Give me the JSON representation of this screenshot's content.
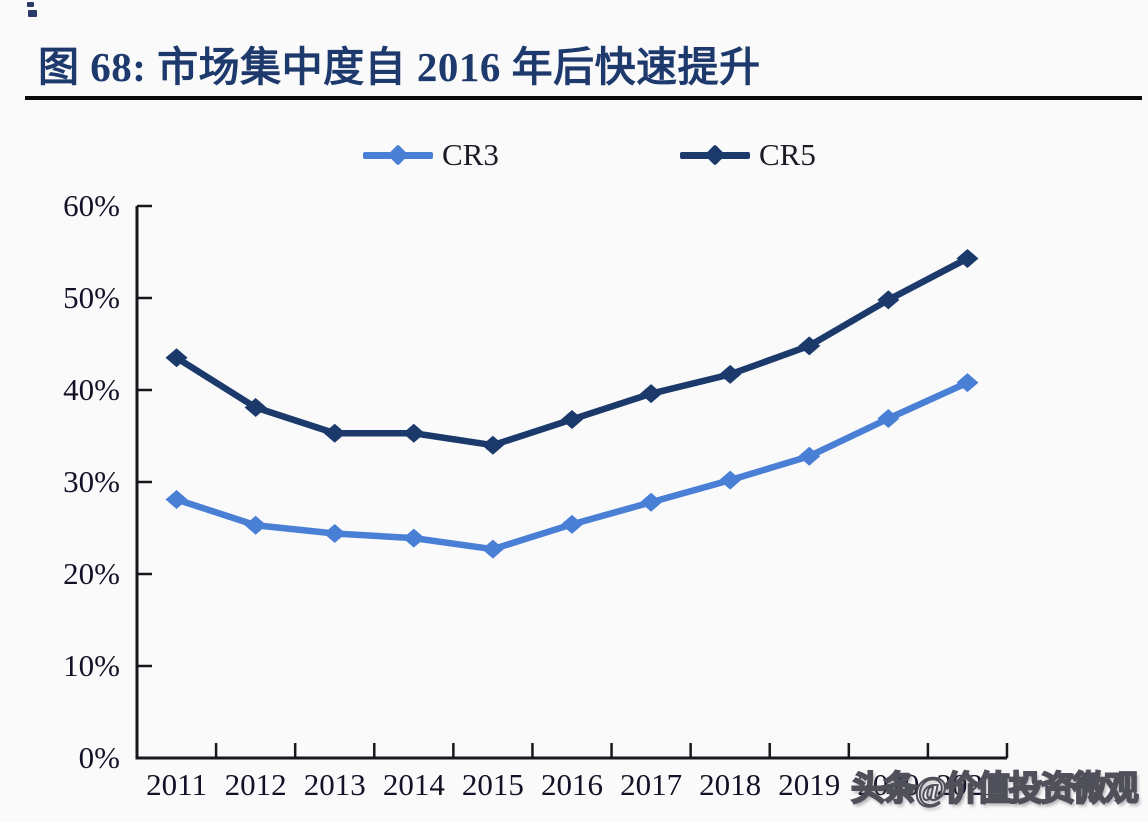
{
  "figure": {
    "title": "图 68: 市场集中度自 2016 年后快速提升",
    "title_color": "#1e3a6d"
  },
  "legend": {
    "items": [
      {
        "label": "CR3",
        "color": "#4a7fd6"
      },
      {
        "label": "CR5",
        "color": "#1b3a6b"
      }
    ]
  },
  "watermark": {
    "text": "头条@价值投资微观"
  },
  "chart_data": {
    "type": "line",
    "title": "图 68: 市场集中度自 2016 年后快速提升",
    "categories": [
      "2011",
      "2012",
      "2013",
      "2014",
      "2015",
      "2016",
      "2017",
      "2018",
      "2019",
      "2020",
      "2021"
    ],
    "series": [
      {
        "name": "CR3",
        "color": "#4a7fd6",
        "marker": "diamond",
        "values": [
          28.1,
          25.3,
          24.4,
          23.9,
          22.7,
          25.4,
          27.8,
          30.2,
          32.8,
          36.9,
          40.8
        ]
      },
      {
        "name": "CR5",
        "color": "#1b3a6b",
        "marker": "diamond",
        "values": [
          43.5,
          38.1,
          35.3,
          35.3,
          34.0,
          36.8,
          39.6,
          41.7,
          44.8,
          49.8,
          54.3
        ]
      }
    ],
    "xlabel": "",
    "ylabel": "",
    "ylim": [
      0,
      60
    ],
    "ytick_step": 10,
    "ytick_labels": [
      "0%",
      "10%",
      "20%",
      "30%",
      "40%",
      "50%",
      "60%"
    ],
    "grid": false,
    "legend_position": "top-center",
    "tick_direction": "in",
    "axis_color": "#17171c",
    "label_color": "#121226"
  }
}
